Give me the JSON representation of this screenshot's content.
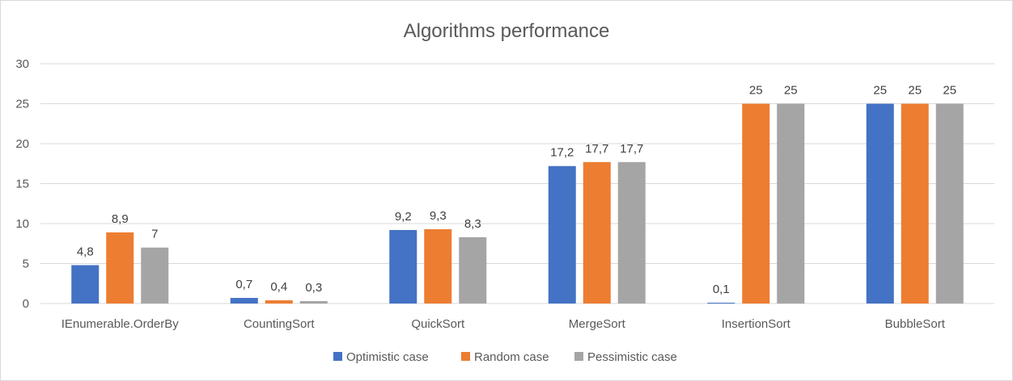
{
  "chart_data": {
    "type": "bar",
    "title": "Algorithms performance",
    "xlabel": "",
    "ylabel": "",
    "ylim": [
      0,
      30
    ],
    "yticks": [
      "0",
      "5",
      "10",
      "15",
      "20",
      "25",
      "30"
    ],
    "grid": true,
    "legend": "bottom",
    "categories": [
      "IEnumerable.OrderBy",
      "CountingSort",
      "QuickSort",
      "MergeSort",
      "InsertionSort",
      "BubbleSort"
    ],
    "series": [
      {
        "name": "Optimistic case",
        "color": "#4472c4",
        "values": [
          4.8,
          0.7,
          9.2,
          17.2,
          0.1,
          25
        ],
        "labels": [
          "4,8",
          "0,7",
          "9,2",
          "17,2",
          "0,1",
          "25"
        ]
      },
      {
        "name": "Random case",
        "color": "#ed7d31",
        "values": [
          8.9,
          0.4,
          9.3,
          17.7,
          25,
          25
        ],
        "labels": [
          "8,9",
          "0,4",
          "9,3",
          "17,7",
          "25",
          "25"
        ]
      },
      {
        "name": "Pessimistic case",
        "color": "#a5a5a5",
        "values": [
          7,
          0.3,
          8.3,
          17.7,
          25,
          25
        ],
        "labels": [
          "7",
          "0,3",
          "8,3",
          "17,7",
          "25",
          "25"
        ]
      }
    ]
  }
}
